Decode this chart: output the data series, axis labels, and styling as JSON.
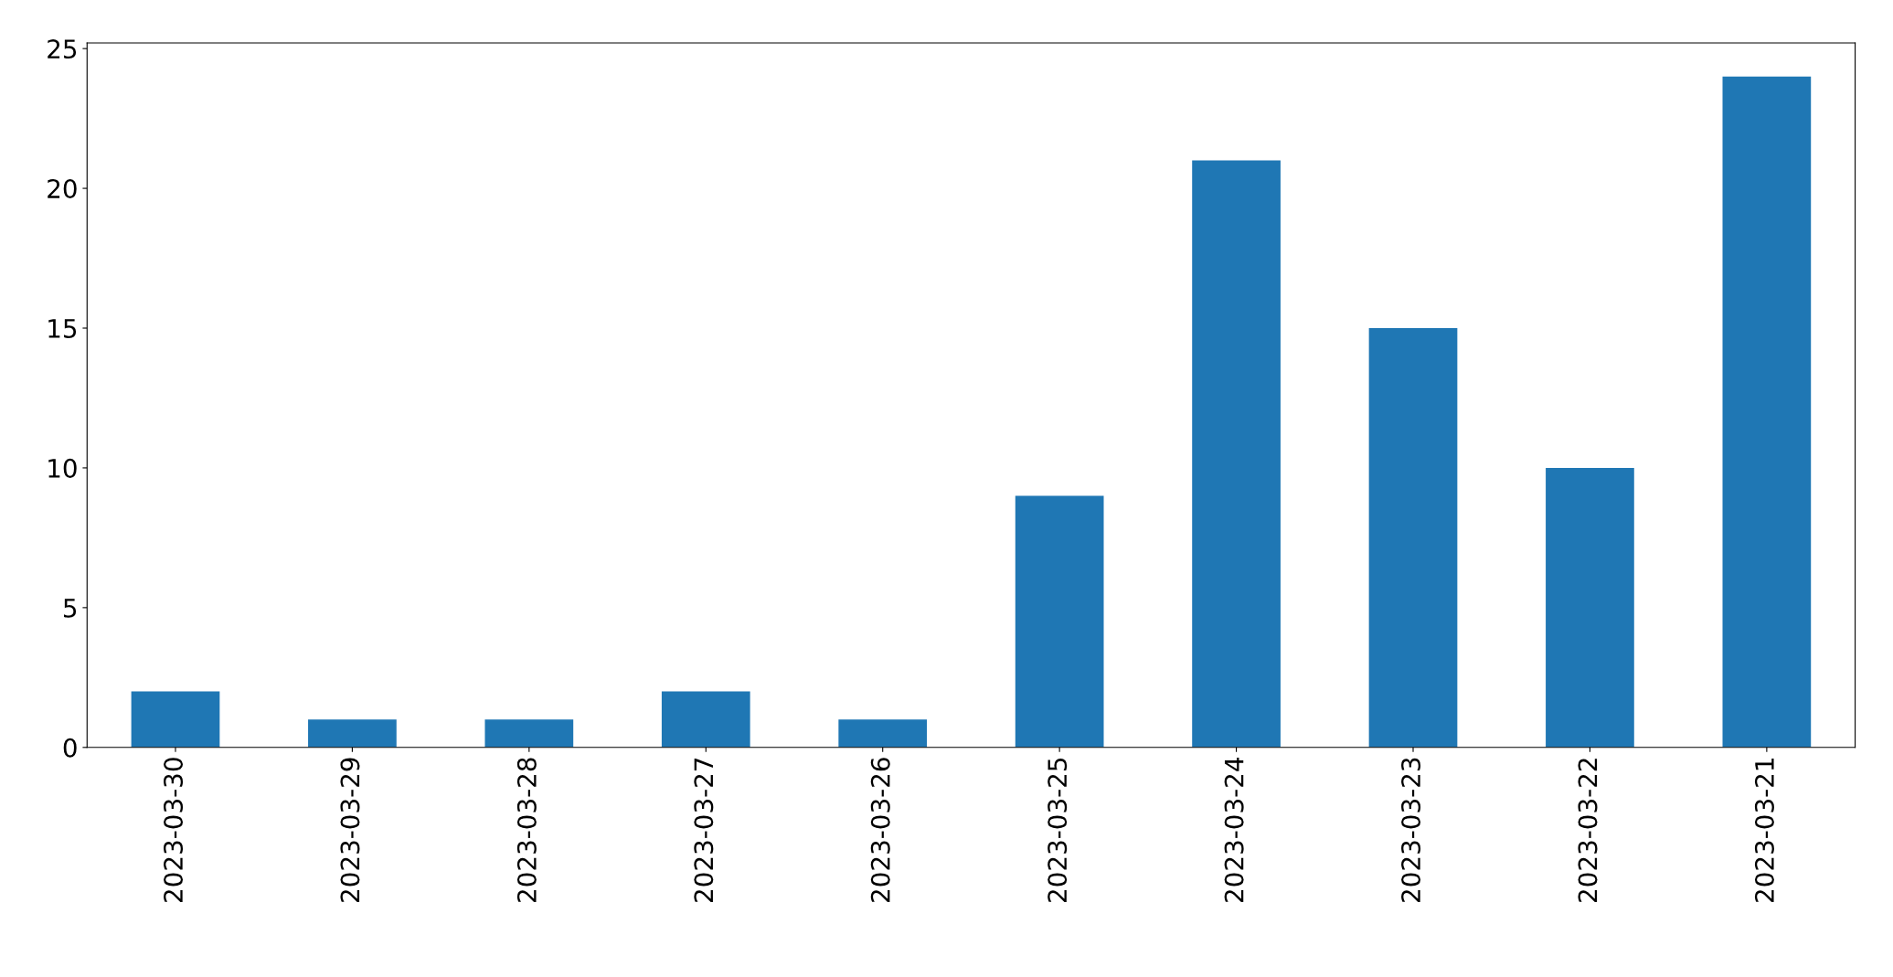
{
  "chart_data": {
    "type": "bar",
    "categories": [
      "2023-03-30",
      "2023-03-29",
      "2023-03-28",
      "2023-03-27",
      "2023-03-26",
      "2023-03-25",
      "2023-03-24",
      "2023-03-23",
      "2023-03-22",
      "2023-03-21"
    ],
    "values": [
      2,
      1,
      1,
      2,
      1,
      9,
      21,
      15,
      10,
      24
    ],
    "color": "#1f77b4",
    "ylim": [
      0,
      25.2
    ],
    "yticks": [
      0,
      5,
      10,
      15,
      20,
      25
    ],
    "grid": false,
    "legend": false
  }
}
